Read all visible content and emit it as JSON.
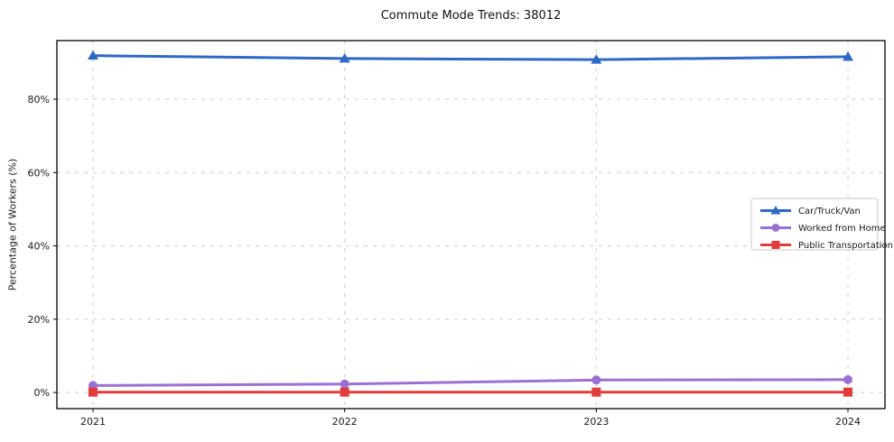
{
  "chart_data": {
    "type": "line",
    "title": "Commute Mode Trends: 38012",
    "xlabel": "",
    "ylabel": "Percentage of Workers (%)",
    "categories": [
      "2021",
      "2022",
      "2023",
      "2024"
    ],
    "series": [
      {
        "name": "Car/Truck/Van",
        "marker": "triangle",
        "color": "#2f68c5",
        "values": [
          91.9,
          91.1,
          90.8,
          91.6
        ]
      },
      {
        "name": "Worked from Home",
        "marker": "circle",
        "color": "#9a70d2",
        "values": [
          1.9,
          2.3,
          3.4,
          3.5
        ]
      },
      {
        "name": "Public Transportation",
        "marker": "square",
        "color": "#e13b3c",
        "values": [
          0.1,
          0.1,
          0.1,
          0.1
        ]
      }
    ],
    "y_ticks": [
      0,
      20,
      40,
      60,
      80
    ],
    "y_tick_labels": [
      "0%",
      "20%",
      "40%",
      "60%",
      "80%"
    ],
    "ylim": [
      -4.4,
      96
    ],
    "grid": true,
    "grid_style": "dashed",
    "grid_color": "#cccccc",
    "spine_color": "#000000",
    "text_color": "#1a1a1a",
    "legend_position": "center-right"
  }
}
